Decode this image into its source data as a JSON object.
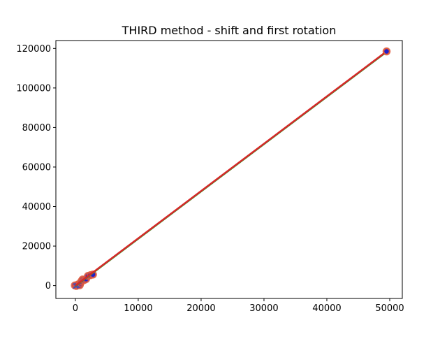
{
  "chart_data": {
    "type": "scatter",
    "title": "THIRD method - shift and first rotation",
    "xlabel": "",
    "ylabel": "",
    "xlim": [
      -3100,
      52000
    ],
    "ylim": [
      -6500,
      124000
    ],
    "x_ticks": [
      0,
      10000,
      20000,
      30000,
      40000,
      50000
    ],
    "x_tick_labels": [
      "0",
      "10000",
      "20000",
      "30000",
      "40000",
      "50000"
    ],
    "y_ticks": [
      0,
      20000,
      40000,
      60000,
      80000,
      100000,
      120000
    ],
    "y_tick_labels": [
      "0",
      "20000",
      "40000",
      "60000",
      "80000",
      "100000",
      "120000"
    ],
    "grid": false,
    "legend": "none",
    "colors": {
      "fit_line": "#d62728",
      "fit_line_under": "#2ca02c",
      "marker_edge": "#e05a3c",
      "marker_face": "#1f1fcc",
      "x_marker": "#3b4cc0"
    },
    "fit_line": {
      "x": [
        0,
        49500
      ],
      "y": [
        0,
        118500
      ]
    },
    "series": [
      {
        "marker": "circle",
        "points": [
          {
            "x": -80,
            "y": 100
          },
          {
            "x": 150,
            "y": -150
          },
          {
            "x": 300,
            "y": 300
          },
          {
            "x": 450,
            "y": 600
          },
          {
            "x": 700,
            "y": 200
          },
          {
            "x": 800,
            "y": 1200
          },
          {
            "x": 950,
            "y": 2200
          },
          {
            "x": 1150,
            "y": 3100
          },
          {
            "x": 1400,
            "y": 2800
          },
          {
            "x": 1700,
            "y": 3300
          },
          {
            "x": 2000,
            "y": 4900
          },
          {
            "x": 2400,
            "y": 5300
          },
          {
            "x": 2800,
            "y": 5600
          },
          {
            "x": 49500,
            "y": 118500
          }
        ]
      },
      {
        "marker": "x",
        "points": [
          {
            "x": 50,
            "y": -200
          },
          {
            "x": 250,
            "y": 100
          }
        ]
      }
    ]
  }
}
